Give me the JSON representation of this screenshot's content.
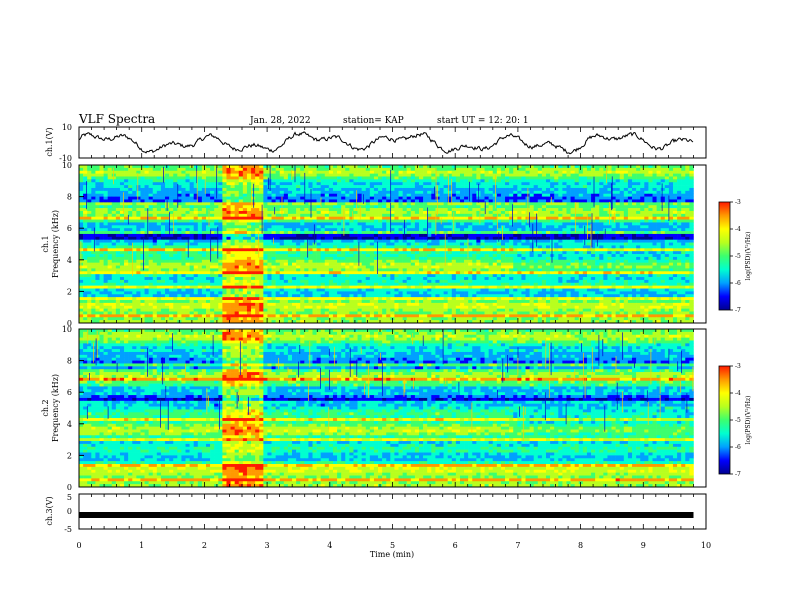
{
  "header": {
    "title": "VLF Spectra",
    "date": "Jan. 28, 2022",
    "station": "station= KAP",
    "start": "start  UT =   12: 20: 1"
  },
  "colors": {
    "waveform": "#000000",
    "colormap": [
      "#00008f",
      "#0000ff",
      "#00a0ff",
      "#00ffd0",
      "#3cff6e",
      "#b8ff1e",
      "#ffff00",
      "#ff9900",
      "#ff1a00",
      "#ffffff"
    ]
  },
  "chart_data": [
    {
      "type": "line",
      "panel": "ch1_waveform",
      "ylabel": "ch.1(V)",
      "yticks": [
        "10",
        "-10"
      ],
      "ylim": [
        -10,
        10
      ],
      "xlim": [
        0,
        10
      ],
      "x_end": 9.8,
      "description_values": "noisy waveform oscillating roughly between -8 and 9 V"
    },
    {
      "type": "heatmap",
      "panel": "ch1_spectrogram",
      "ylabel_line1": "ch.1",
      "ylabel_line2": "Frequency (kHz)",
      "yticks": [
        "0",
        "2",
        "4",
        "6",
        "8",
        "10"
      ],
      "ylim": [
        0,
        10
      ],
      "xlim": [
        0,
        10
      ],
      "x_end": 9.8,
      "burst_interval_min": [
        2.25,
        2.9
      ],
      "colorbar": {
        "label": "log(PSD)(V²/Hz)",
        "ticks": [
          "-3",
          "-4",
          "-5",
          "-6",
          "-7"
        ],
        "range": [
          -7,
          -3
        ]
      }
    },
    {
      "type": "heatmap",
      "panel": "ch2_spectrogram",
      "ylabel_line1": "ch.2",
      "ylabel_line2": "Frequency (kHz)",
      "yticks": [
        "0",
        "2",
        "4",
        "6",
        "8",
        "10"
      ],
      "ylim": [
        0,
        10
      ],
      "xlim": [
        0,
        10
      ],
      "x_end": 9.8,
      "burst_interval_min": [
        2.25,
        2.9
      ],
      "colorbar": {
        "label": "log(PSD)(V²/Hz)",
        "ticks": [
          "-3",
          "-4",
          "-5",
          "-6",
          "-7"
        ],
        "range": [
          -7,
          -3
        ]
      }
    },
    {
      "type": "line",
      "panel": "ch3_waveform",
      "ylabel": "ch.3(V)",
      "yticks": [
        "5",
        "0",
        "-5"
      ],
      "ylim": [
        -5,
        5
      ],
      "value": -1,
      "xlim": [
        0,
        10
      ],
      "x_end": 9.8,
      "xlabel": "Time (min)",
      "xticks": [
        "0",
        "1",
        "2",
        "3",
        "4",
        "5",
        "6",
        "7",
        "8",
        "9",
        "10"
      ]
    }
  ]
}
